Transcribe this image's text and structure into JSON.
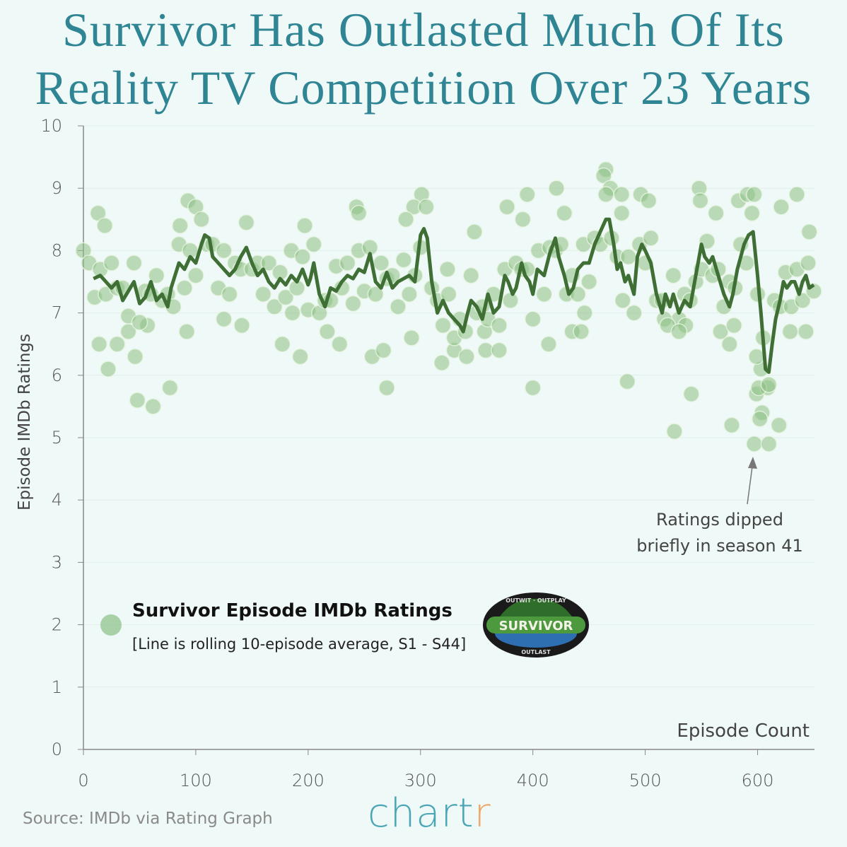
{
  "title_line1": "Survivor Has Outlasted Much Of Its",
  "title_line2": "Reality TV Competition Over 23 Years",
  "source": "Source: IMDb via Rating Graph",
  "brand": {
    "main": "chart",
    "accent": "r"
  },
  "logo": {
    "text": "SURVIVOR",
    "top": "OUTWIT · OUTPLAY",
    "bottom": "OUTLAST"
  },
  "colors": {
    "title": "#2f8593",
    "points": "#8cc084",
    "line": "#3f6f35",
    "background": "#eff9f7"
  },
  "chart_data": {
    "type": "scatter",
    "title": "Survivor Has Outlasted Much Of Its Reality TV Competition Over 23 Years",
    "xlabel": "Episode Count",
    "ylabel": "Episode IMDb Ratings",
    "xlim": [
      0,
      650
    ],
    "ylim": [
      0,
      10
    ],
    "xticks": [
      0,
      100,
      200,
      300,
      400,
      500,
      600
    ],
    "yticks": [
      0,
      1,
      2,
      3,
      4,
      5,
      6,
      7,
      8,
      9,
      10
    ],
    "grid": "horizontal",
    "legend": {
      "title": "Survivor Episode IMDb Ratings",
      "subtitle": "[Line is rolling 10-episode average, S1 - S44]",
      "placement": "bottom-left"
    },
    "annotation": {
      "line1": "Ratings dipped",
      "line2": "briefly in season 41",
      "x": 597,
      "y": 4.9
    },
    "points": [
      [
        0,
        8.0
      ],
      [
        13,
        8.6
      ],
      [
        19,
        8.4
      ],
      [
        14,
        6.5
      ],
      [
        22,
        6.1
      ],
      [
        30,
        6.5
      ],
      [
        40,
        6.7
      ],
      [
        46,
        6.3
      ],
      [
        48,
        5.6
      ],
      [
        62,
        5.5
      ],
      [
        57,
        6.8
      ],
      [
        77,
        5.8
      ],
      [
        92,
        6.7
      ],
      [
        86,
        8.4
      ],
      [
        93,
        8.8
      ],
      [
        100,
        8.7
      ],
      [
        125,
        6.9
      ],
      [
        141,
        6.8
      ],
      [
        177,
        6.5
      ],
      [
        186,
        7.0
      ],
      [
        193,
        6.3
      ],
      [
        197,
        8.4
      ],
      [
        217,
        6.7
      ],
      [
        228,
        6.5
      ],
      [
        243,
        8.7
      ],
      [
        245,
        8.6
      ],
      [
        257,
        6.3
      ],
      [
        267,
        6.4
      ],
      [
        270,
        5.8
      ],
      [
        292,
        6.6
      ],
      [
        301,
        8.9
      ],
      [
        294,
        8.7
      ],
      [
        287,
        8.5
      ],
      [
        319,
        6.2
      ],
      [
        330,
        6.4
      ],
      [
        324,
        7.7
      ],
      [
        341,
        6.3
      ],
      [
        348,
        8.3
      ],
      [
        357,
        6.7
      ],
      [
        358,
        6.4
      ],
      [
        370,
        6.4
      ],
      [
        377,
        8.7
      ],
      [
        395,
        8.9
      ],
      [
        400,
        5.8
      ],
      [
        391,
        8.5
      ],
      [
        414,
        6.5
      ],
      [
        421,
        9.0
      ],
      [
        428,
        8.6
      ],
      [
        435,
        6.7
      ],
      [
        443,
        6.7
      ],
      [
        446,
        7.0
      ],
      [
        465,
        9.3
      ],
      [
        463,
        9.2
      ],
      [
        469,
        9.0
      ],
      [
        479,
        8.9
      ],
      [
        479,
        8.6
      ],
      [
        484,
        5.9
      ],
      [
        496,
        8.9
      ],
      [
        503,
        8.8
      ],
      [
        526,
        5.1
      ],
      [
        541,
        5.7
      ],
      [
        548,
        9.0
      ],
      [
        549,
        8.8
      ],
      [
        563,
        8.6
      ],
      [
        577,
        5.2
      ],
      [
        583,
        8.8
      ],
      [
        591,
        8.9
      ],
      [
        597,
        8.9
      ],
      [
        597,
        4.9
      ],
      [
        610,
        4.9
      ],
      [
        619,
        5.2
      ],
      [
        621,
        8.7
      ],
      [
        635,
        8.9
      ],
      [
        646,
        8.3
      ],
      [
        643,
        6.7
      ],
      [
        629,
        6.7
      ],
      [
        604,
        5.4
      ],
      [
        602,
        5.3
      ],
      [
        599,
        5.7
      ],
      [
        609,
        5.8
      ],
      [
        601,
        5.8
      ],
      [
        603,
        6.1
      ],
      [
        599,
        6.3
      ],
      [
        530,
        6.9
      ],
      [
        536,
        6.8
      ],
      [
        517,
        6.9
      ],
      [
        575,
        6.5
      ],
      [
        567,
        6.7
      ],
      [
        579,
        6.8
      ],
      [
        5,
        7.8
      ],
      [
        10,
        7.25
      ],
      [
        15,
        7.7
      ],
      [
        20,
        7.3
      ],
      [
        25,
        7.8
      ],
      [
        30,
        7.4
      ],
      [
        35,
        7.4
      ],
      [
        40,
        6.95
      ],
      [
        45,
        7.8
      ],
      [
        50,
        6.85
      ],
      [
        55,
        7.35
      ],
      [
        60,
        7.3
      ],
      [
        65,
        7.6
      ],
      [
        70,
        7.2
      ],
      [
        75,
        7.3
      ],
      [
        80,
        7.1
      ],
      [
        85,
        8.1
      ],
      [
        90,
        7.4
      ],
      [
        95,
        8.0
      ],
      [
        100,
        7.6
      ],
      [
        105,
        8.5
      ],
      [
        110,
        8.1
      ],
      [
        115,
        8.1
      ],
      [
        120,
        7.4
      ],
      [
        125,
        8.0
      ],
      [
        130,
        7.3
      ],
      [
        135,
        7.8
      ],
      [
        140,
        7.7
      ],
      [
        145,
        8.45
      ],
      [
        150,
        7.7
      ],
      [
        155,
        7.8
      ],
      [
        160,
        7.3
      ],
      [
        165,
        7.8
      ],
      [
        170,
        7.1
      ],
      [
        175,
        7.65
      ],
      [
        180,
        7.25
      ],
      [
        185,
        8.0
      ],
      [
        190,
        7.4
      ],
      [
        195,
        7.9
      ],
      [
        200,
        7.05
      ],
      [
        205,
        8.1
      ],
      [
        210,
        7.0
      ],
      [
        215,
        7.2
      ],
      [
        220,
        7.2
      ],
      [
        225,
        7.75
      ],
      [
        230,
        7.4
      ],
      [
        235,
        7.8
      ],
      [
        240,
        7.15
      ],
      [
        245,
        8.0
      ],
      [
        250,
        7.35
      ],
      [
        255,
        8.05
      ],
      [
        260,
        7.3
      ],
      [
        265,
        7.8
      ],
      [
        270,
        7.55
      ],
      [
        275,
        7.6
      ],
      [
        280,
        7.1
      ],
      [
        285,
        7.85
      ],
      [
        290,
        7.3
      ],
      [
        295,
        7.6
      ],
      [
        300,
        8.05
      ],
      [
        305,
        8.7
      ],
      [
        310,
        7.4
      ],
      [
        315,
        7.2
      ],
      [
        320,
        6.8
      ],
      [
        325,
        7.3
      ],
      [
        330,
        6.6
      ],
      [
        335,
        6.9
      ],
      [
        340,
        6.7
      ],
      [
        345,
        7.6
      ],
      [
        350,
        7.0
      ],
      [
        355,
        7.1
      ],
      [
        360,
        6.9
      ],
      [
        365,
        7.3
      ],
      [
        370,
        6.8
      ],
      [
        375,
        7.7
      ],
      [
        380,
        7.2
      ],
      [
        385,
        7.8
      ],
      [
        390,
        7.7
      ],
      [
        395,
        7.7
      ],
      [
        400,
        6.9
      ],
      [
        405,
        8.0
      ],
      [
        410,
        7.3
      ],
      [
        415,
        8.05
      ],
      [
        420,
        8.0
      ],
      [
        425,
        8.1
      ],
      [
        430,
        7.3
      ],
      [
        435,
        7.6
      ],
      [
        440,
        7.3
      ],
      [
        445,
        8.1
      ],
      [
        450,
        7.5
      ],
      [
        455,
        8.2
      ],
      [
        460,
        8.1
      ],
      [
        465,
        8.9
      ],
      [
        470,
        8.2
      ],
      [
        475,
        7.9
      ],
      [
        480,
        7.2
      ],
      [
        485,
        7.9
      ],
      [
        490,
        7.0
      ],
      [
        495,
        8.1
      ],
      [
        500,
        7.8
      ],
      [
        505,
        8.2
      ],
      [
        510,
        7.2
      ],
      [
        515,
        7.2
      ],
      [
        520,
        6.8
      ],
      [
        525,
        7.6
      ],
      [
        530,
        6.7
      ],
      [
        535,
        7.3
      ],
      [
        540,
        7.2
      ],
      [
        545,
        7.5
      ],
      [
        550,
        7.7
      ],
      [
        555,
        8.15
      ],
      [
        560,
        7.6
      ],
      [
        565,
        7.7
      ],
      [
        570,
        7.1
      ],
      [
        575,
        7.5
      ],
      [
        580,
        7.4
      ],
      [
        585,
        8.1
      ],
      [
        590,
        7.8
      ],
      [
        595,
        8.6
      ],
      [
        600,
        7.3
      ],
      [
        605,
        6.6
      ],
      [
        610,
        5.85
      ],
      [
        615,
        7.2
      ],
      [
        620,
        7.1
      ],
      [
        625,
        7.65
      ],
      [
        630,
        7.1
      ],
      [
        635,
        7.7
      ],
      [
        640,
        7.2
      ],
      [
        645,
        7.8
      ],
      [
        650,
        7.35
      ]
    ],
    "rolling_average": [
      [
        9,
        7.55
      ],
      [
        15,
        7.6
      ],
      [
        20,
        7.5
      ],
      [
        25,
        7.4
      ],
      [
        30,
        7.5
      ],
      [
        35,
        7.2
      ],
      [
        40,
        7.35
      ],
      [
        45,
        7.5
      ],
      [
        50,
        7.15
      ],
      [
        55,
        7.25
      ],
      [
        60,
        7.5
      ],
      [
        65,
        7.2
      ],
      [
        70,
        7.3
      ],
      [
        75,
        7.1
      ],
      [
        78,
        7.4
      ],
      [
        85,
        7.8
      ],
      [
        90,
        7.7
      ],
      [
        95,
        7.9
      ],
      [
        100,
        7.8
      ],
      [
        105,
        8.1
      ],
      [
        108,
        8.25
      ],
      [
        112,
        8.2
      ],
      [
        115,
        7.9
      ],
      [
        120,
        7.8
      ],
      [
        125,
        7.7
      ],
      [
        130,
        7.6
      ],
      [
        135,
        7.7
      ],
      [
        140,
        7.9
      ],
      [
        145,
        8.05
      ],
      [
        150,
        7.8
      ],
      [
        155,
        7.6
      ],
      [
        160,
        7.7
      ],
      [
        165,
        7.5
      ],
      [
        170,
        7.4
      ],
      [
        175,
        7.55
      ],
      [
        180,
        7.45
      ],
      [
        185,
        7.6
      ],
      [
        190,
        7.5
      ],
      [
        195,
        7.7
      ],
      [
        200,
        7.45
      ],
      [
        202,
        7.55
      ],
      [
        205,
        7.8
      ],
      [
        210,
        7.3
      ],
      [
        215,
        7.1
      ],
      [
        220,
        7.4
      ],
      [
        225,
        7.35
      ],
      [
        230,
        7.5
      ],
      [
        235,
        7.6
      ],
      [
        240,
        7.55
      ],
      [
        245,
        7.7
      ],
      [
        250,
        7.65
      ],
      [
        255,
        7.95
      ],
      [
        260,
        7.5
      ],
      [
        265,
        7.4
      ],
      [
        270,
        7.65
      ],
      [
        275,
        7.4
      ],
      [
        280,
        7.5
      ],
      [
        285,
        7.55
      ],
      [
        290,
        7.6
      ],
      [
        295,
        7.5
      ],
      [
        300,
        8.25
      ],
      [
        303,
        8.35
      ],
      [
        306,
        8.2
      ],
      [
        310,
        7.5
      ],
      [
        315,
        7.0
      ],
      [
        320,
        7.2
      ],
      [
        325,
        7.0
      ],
      [
        330,
        6.9
      ],
      [
        335,
        6.8
      ],
      [
        338,
        6.7
      ],
      [
        342,
        7.0
      ],
      [
        345,
        7.2
      ],
      [
        350,
        7.1
      ],
      [
        355,
        6.9
      ],
      [
        360,
        7.3
      ],
      [
        365,
        7.0
      ],
      [
        370,
        7.1
      ],
      [
        375,
        7.6
      ],
      [
        378,
        7.5
      ],
      [
        382,
        7.3
      ],
      [
        385,
        7.4
      ],
      [
        390,
        7.8
      ],
      [
        393,
        7.6
      ],
      [
        397,
        7.5
      ],
      [
        400,
        7.3
      ],
      [
        404,
        7.7
      ],
      [
        410,
        7.6
      ],
      [
        415,
        7.95
      ],
      [
        420,
        8.2
      ],
      [
        423,
        7.9
      ],
      [
        428,
        7.6
      ],
      [
        432,
        7.3
      ],
      [
        436,
        7.4
      ],
      [
        440,
        7.7
      ],
      [
        445,
        7.8
      ],
      [
        450,
        7.8
      ],
      [
        455,
        8.1
      ],
      [
        460,
        8.3
      ],
      [
        465,
        8.5
      ],
      [
        468,
        8.5
      ],
      [
        472,
        8.1
      ],
      [
        475,
        7.7
      ],
      [
        478,
        7.8
      ],
      [
        482,
        7.5
      ],
      [
        485,
        7.6
      ],
      [
        490,
        7.3
      ],
      [
        493,
        7.9
      ],
      [
        497,
        8.1
      ],
      [
        500,
        8.0
      ],
      [
        505,
        7.8
      ],
      [
        510,
        7.3
      ],
      [
        515,
        7.0
      ],
      [
        518,
        7.3
      ],
      [
        522,
        7.1
      ],
      [
        525,
        7.3
      ],
      [
        530,
        7.0
      ],
      [
        535,
        7.2
      ],
      [
        540,
        7.1
      ],
      [
        545,
        7.6
      ],
      [
        550,
        8.1
      ],
      [
        553,
        7.9
      ],
      [
        557,
        7.8
      ],
      [
        560,
        7.9
      ],
      [
        565,
        7.6
      ],
      [
        570,
        7.3
      ],
      [
        575,
        7.1
      ],
      [
        578,
        7.3
      ],
      [
        582,
        7.7
      ],
      [
        588,
        8.1
      ],
      [
        592,
        8.25
      ],
      [
        596,
        8.3
      ],
      [
        600,
        7.6
      ],
      [
        603,
        7.0
      ],
      [
        607,
        6.1
      ],
      [
        610,
        6.05
      ],
      [
        613,
        6.5
      ],
      [
        616,
        6.9
      ],
      [
        620,
        7.2
      ],
      [
        623,
        7.5
      ],
      [
        626,
        7.4
      ],
      [
        630,
        7.5
      ],
      [
        633,
        7.5
      ],
      [
        637,
        7.3
      ],
      [
        640,
        7.5
      ],
      [
        643,
        7.6
      ],
      [
        646,
        7.4
      ],
      [
        650,
        7.45
      ]
    ]
  }
}
